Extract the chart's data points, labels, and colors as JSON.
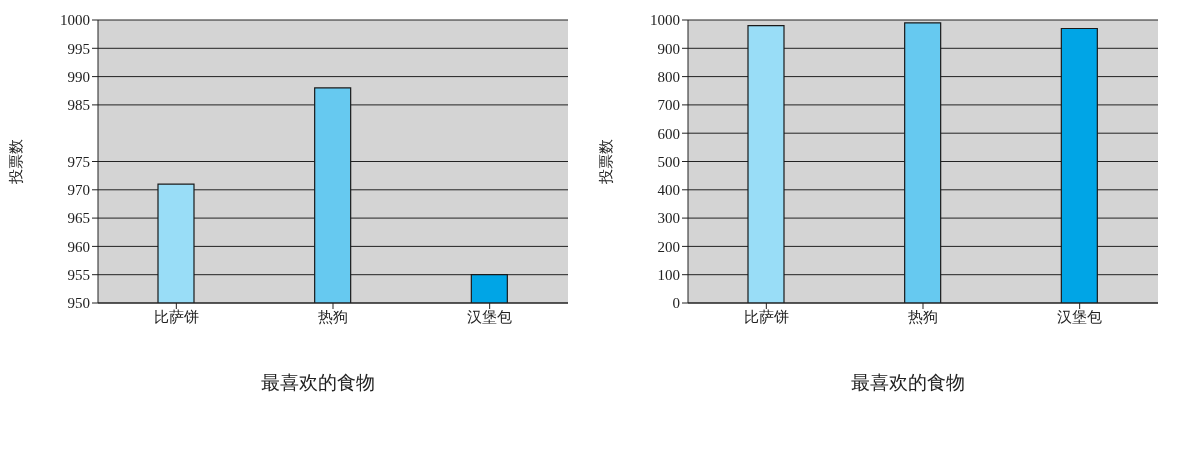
{
  "chart_data": [
    {
      "type": "bar",
      "xlabel": "最喜欢的食物",
      "ylabel": "投票数",
      "categories": [
        "比萨饼",
        "热狗",
        "汉堡包"
      ],
      "values": [
        971,
        988,
        955
      ],
      "colors": [
        "#99ddf7",
        "#66c9f0",
        "#00a5e6"
      ],
      "ylim": [
        950,
        1000
      ],
      "yticks": [
        950,
        955,
        960,
        965,
        970,
        975,
        985,
        990,
        995,
        1000
      ],
      "grid": "y"
    },
    {
      "type": "bar",
      "xlabel": "最喜欢的食物",
      "ylabel": "投票数",
      "categories": [
        "比萨饼",
        "热狗",
        "汉堡包"
      ],
      "values": [
        980,
        990,
        970
      ],
      "colors": [
        "#99ddf7",
        "#66c9f0",
        "#00a5e6"
      ],
      "ylim": [
        0,
        1000
      ],
      "yticks": [
        0,
        100,
        200,
        300,
        400,
        500,
        600,
        700,
        800,
        900,
        1000
      ],
      "grid": "y"
    }
  ]
}
